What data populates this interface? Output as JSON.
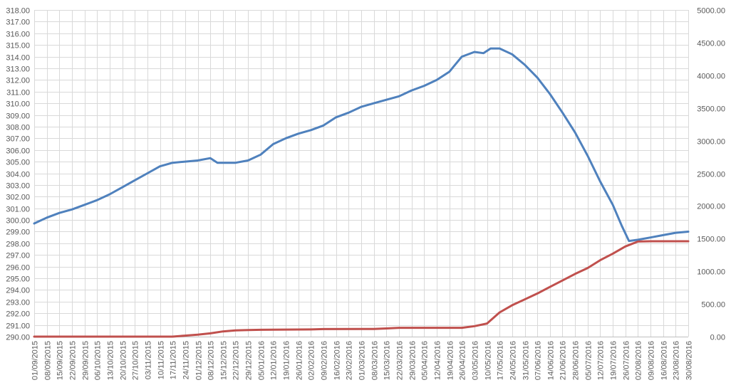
{
  "chart_data": {
    "type": "line",
    "title": "",
    "xlabel": "",
    "ylabel_left": "",
    "ylabel_right": "",
    "grid": true,
    "legend": "none",
    "left_axis": {
      "range": [
        290,
        318
      ],
      "step": 1,
      "ticks": [
        "290.00",
        "291.00",
        "292.00",
        "293.00",
        "294.00",
        "295.00",
        "296.00",
        "297.00",
        "298.00",
        "299.00",
        "300.00",
        "301.00",
        "302.00",
        "303.00",
        "304.00",
        "305.00",
        "306.00",
        "307.00",
        "308.00",
        "309.00",
        "310.00",
        "311.00",
        "312.00",
        "313.00",
        "314.00",
        "315.00",
        "316.00",
        "317.00",
        "318.00"
      ]
    },
    "right_axis": {
      "range": [
        0,
        5000
      ],
      "step": 500,
      "ticks": [
        "0.00",
        "500.00",
        "1000.00",
        "1500.00",
        "2000.00",
        "2500.00",
        "3000.00",
        "3500.00",
        "4000.00",
        "4500.00",
        "5000.00"
      ]
    },
    "x_axis": {
      "start": "01/09/2015",
      "end": "30/08/2016",
      "tick_labels": [
        "01/09/2015",
        "08/09/2015",
        "15/09/2015",
        "22/09/2015",
        "29/09/2015",
        "06/10/2015",
        "13/10/2015",
        "20/10/2015",
        "27/10/2015",
        "03/11/2015",
        "10/11/2015",
        "17/11/2015",
        "24/11/2015",
        "01/12/2015",
        "08/12/2015",
        "15/12/2015",
        "22/12/2015",
        "29/12/2015",
        "05/01/2016",
        "12/01/2016",
        "19/01/2016",
        "26/01/2016",
        "02/02/2016",
        "09/02/2016",
        "16/02/2016",
        "23/02/2016",
        "01/03/2016",
        "08/03/2016",
        "15/03/2016",
        "22/03/2016",
        "29/03/2016",
        "05/04/2016",
        "12/04/2016",
        "19/04/2016",
        "26/04/2016",
        "03/05/2016",
        "10/05/2016",
        "17/05/2016",
        "24/05/2016",
        "31/05/2016",
        "07/06/2016",
        "14/06/2016",
        "21/06/2016",
        "28/06/2016",
        "05/07/2016",
        "12/07/2016",
        "19/07/2016",
        "26/07/2016",
        "02/08/2016",
        "09/08/2016",
        "16/08/2016",
        "23/08/2016",
        "30/08/2016"
      ]
    },
    "series": [
      {
        "axis": "left",
        "color": "#4f81bd",
        "points": [
          {
            "x": "01/09/2015",
            "y": 299.7
          },
          {
            "x": "08/09/2015",
            "y": 300.2
          },
          {
            "x": "15/09/2015",
            "y": 300.6
          },
          {
            "x": "22/09/2015",
            "y": 300.9
          },
          {
            "x": "29/09/2015",
            "y": 301.3
          },
          {
            "x": "06/10/2015",
            "y": 301.7
          },
          {
            "x": "13/10/2015",
            "y": 302.2
          },
          {
            "x": "20/10/2015",
            "y": 302.8
          },
          {
            "x": "27/10/2015",
            "y": 303.4
          },
          {
            "x": "03/11/2015",
            "y": 304.0
          },
          {
            "x": "10/11/2015",
            "y": 304.6
          },
          {
            "x": "17/11/2015",
            "y": 304.9
          },
          {
            "x": "24/11/2015",
            "y": 305.0
          },
          {
            "x": "01/12/2015",
            "y": 305.1
          },
          {
            "x": "08/12/2015",
            "y": 305.3
          },
          {
            "x": "12/12/2015",
            "y": 304.9
          },
          {
            "x": "15/12/2015",
            "y": 304.9
          },
          {
            "x": "22/12/2015",
            "y": 304.9
          },
          {
            "x": "29/12/2015",
            "y": 305.1
          },
          {
            "x": "05/01/2016",
            "y": 305.6
          },
          {
            "x": "12/01/2016",
            "y": 306.5
          },
          {
            "x": "19/01/2016",
            "y": 307.0
          },
          {
            "x": "26/01/2016",
            "y": 307.4
          },
          {
            "x": "02/02/2016",
            "y": 307.7
          },
          {
            "x": "09/02/2016",
            "y": 308.1
          },
          {
            "x": "16/02/2016",
            "y": 308.8
          },
          {
            "x": "23/02/2016",
            "y": 309.2
          },
          {
            "x": "01/03/2016",
            "y": 309.7
          },
          {
            "x": "08/03/2016",
            "y": 310.0
          },
          {
            "x": "15/03/2016",
            "y": 310.3
          },
          {
            "x": "22/03/2016",
            "y": 310.6
          },
          {
            "x": "29/03/2016",
            "y": 311.1
          },
          {
            "x": "05/04/2016",
            "y": 311.5
          },
          {
            "x": "12/04/2016",
            "y": 312.0
          },
          {
            "x": "19/04/2016",
            "y": 312.7
          },
          {
            "x": "26/04/2016",
            "y": 314.0
          },
          {
            "x": "03/05/2016",
            "y": 314.4
          },
          {
            "x": "08/05/2016",
            "y": 314.3
          },
          {
            "x": "12/05/2016",
            "y": 314.7
          },
          {
            "x": "17/05/2016",
            "y": 314.7
          },
          {
            "x": "24/05/2016",
            "y": 314.2
          },
          {
            "x": "31/05/2016",
            "y": 313.3
          },
          {
            "x": "07/06/2016",
            "y": 312.2
          },
          {
            "x": "14/06/2016",
            "y": 310.8
          },
          {
            "x": "21/06/2016",
            "y": 309.2
          },
          {
            "x": "28/06/2016",
            "y": 307.5
          },
          {
            "x": "05/07/2016",
            "y": 305.5
          },
          {
            "x": "12/07/2016",
            "y": 303.3
          },
          {
            "x": "19/07/2016",
            "y": 301.3
          },
          {
            "x": "24/07/2016",
            "y": 299.5
          },
          {
            "x": "28/07/2016",
            "y": 298.2
          },
          {
            "x": "02/08/2016",
            "y": 298.3
          },
          {
            "x": "09/08/2016",
            "y": 298.5
          },
          {
            "x": "16/08/2016",
            "y": 298.7
          },
          {
            "x": "23/08/2016",
            "y": 298.9
          },
          {
            "x": "30/08/2016",
            "y": 299.0
          }
        ]
      },
      {
        "axis": "right",
        "color": "#c0504d",
        "points": [
          {
            "x": "01/09/2015",
            "y": 0
          },
          {
            "x": "17/11/2015",
            "y": 0
          },
          {
            "x": "24/11/2015",
            "y": 15
          },
          {
            "x": "01/12/2015",
            "y": 30
          },
          {
            "x": "08/12/2015",
            "y": 50
          },
          {
            "x": "15/12/2015",
            "y": 80
          },
          {
            "x": "22/12/2015",
            "y": 95
          },
          {
            "x": "29/12/2015",
            "y": 100
          },
          {
            "x": "05/01/2016",
            "y": 105
          },
          {
            "x": "02/02/2016",
            "y": 110
          },
          {
            "x": "09/02/2016",
            "y": 115
          },
          {
            "x": "08/03/2016",
            "y": 118
          },
          {
            "x": "15/03/2016",
            "y": 125
          },
          {
            "x": "22/03/2016",
            "y": 135
          },
          {
            "x": "26/04/2016",
            "y": 135
          },
          {
            "x": "03/05/2016",
            "y": 160
          },
          {
            "x": "10/05/2016",
            "y": 200
          },
          {
            "x": "17/05/2016",
            "y": 370
          },
          {
            "x": "24/05/2016",
            "y": 480
          },
          {
            "x": "31/05/2016",
            "y": 570
          },
          {
            "x": "07/06/2016",
            "y": 660
          },
          {
            "x": "14/06/2016",
            "y": 760
          },
          {
            "x": "21/06/2016",
            "y": 860
          },
          {
            "x": "28/06/2016",
            "y": 960
          },
          {
            "x": "05/07/2016",
            "y": 1050
          },
          {
            "x": "12/07/2016",
            "y": 1170
          },
          {
            "x": "19/07/2016",
            "y": 1270
          },
          {
            "x": "26/07/2016",
            "y": 1380
          },
          {
            "x": "02/08/2016",
            "y": 1455
          },
          {
            "x": "09/08/2016",
            "y": 1460
          },
          {
            "x": "30/08/2016",
            "y": 1460
          }
        ]
      }
    ]
  }
}
